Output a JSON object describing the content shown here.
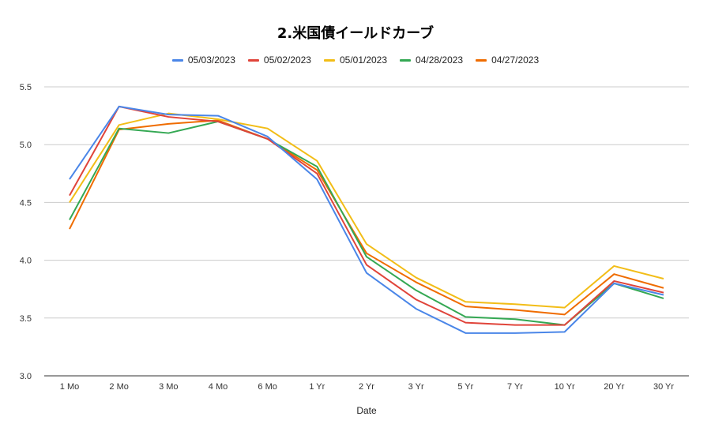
{
  "chart_data": {
    "type": "line",
    "title": "2.米国債イールドカーブ",
    "xlabel": "Date",
    "ylabel": "",
    "ylim": [
      3.0,
      5.5
    ],
    "yticks": [
      "3.0",
      "3.5",
      "4.0",
      "4.5",
      "5.0",
      "5.5"
    ],
    "grid": true,
    "legend_position": "top",
    "categories": [
      "1 Mo",
      "2 Mo",
      "3 Mo",
      "4 Mo",
      "6 Mo",
      "1 Yr",
      "2 Yr",
      "3 Yr",
      "5 Yr",
      "7 Yr",
      "10 Yr",
      "20 Yr",
      "30 Yr"
    ],
    "series": [
      {
        "name": "05/03/2023",
        "color": "#4a86e8",
        "values": [
          4.7,
          5.33,
          5.26,
          5.25,
          5.07,
          4.7,
          3.89,
          3.58,
          3.37,
          3.37,
          3.38,
          3.8,
          3.7
        ]
      },
      {
        "name": "05/02/2023",
        "color": "#e0443a",
        "values": [
          4.56,
          5.33,
          5.24,
          5.2,
          5.05,
          4.75,
          3.96,
          3.66,
          3.46,
          3.44,
          3.44,
          3.82,
          3.72
        ]
      },
      {
        "name": "05/01/2023",
        "color": "#f2bd17",
        "values": [
          4.5,
          5.17,
          5.27,
          5.22,
          5.14,
          4.86,
          4.14,
          3.85,
          3.64,
          3.62,
          3.59,
          3.95,
          3.84
        ]
      },
      {
        "name": "04/28/2023",
        "color": "#34a853",
        "values": [
          4.35,
          5.14,
          5.1,
          5.2,
          5.05,
          4.81,
          4.03,
          3.74,
          3.51,
          3.49,
          3.44,
          3.8,
          3.67
        ]
      },
      {
        "name": "04/27/2023",
        "color": "#ef6c00",
        "values": [
          4.27,
          5.13,
          5.18,
          5.21,
          5.05,
          4.78,
          4.06,
          3.81,
          3.6,
          3.57,
          3.53,
          3.88,
          3.76
        ]
      }
    ]
  }
}
